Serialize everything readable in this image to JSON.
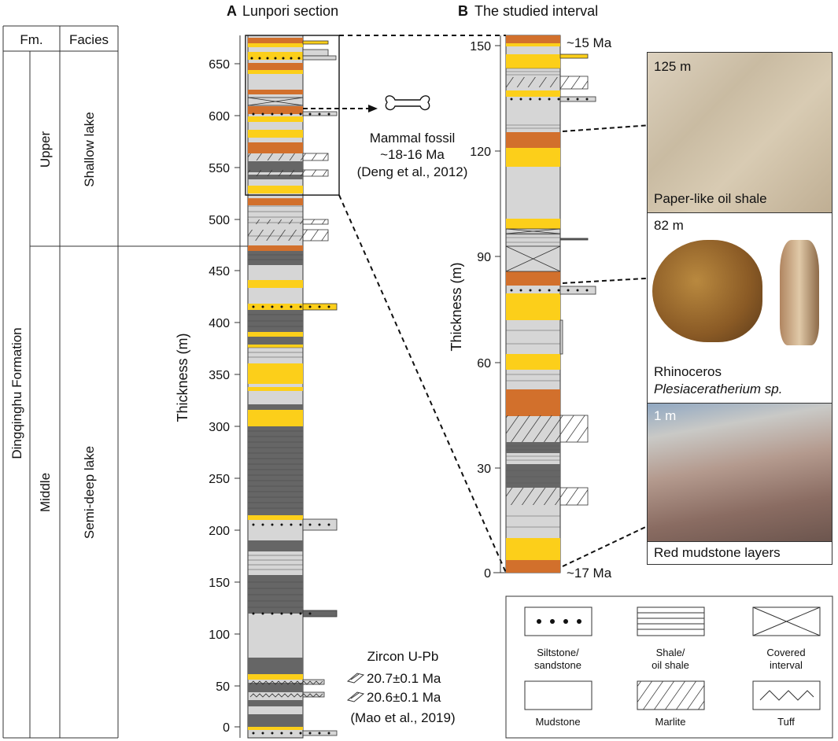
{
  "headings": {
    "a_letter": "A",
    "a_title": "Lunpori section",
    "b_letter": "B",
    "b_title": "The studied interval"
  },
  "strat_table": {
    "col_fm": "Fm.",
    "col_facies": "Facies",
    "formation": "Dingqinghu Formation",
    "member_upper": "Upper",
    "member_middle": "Middle",
    "facies_upper": "Shallow lake",
    "facies_middle": "Semi-deep lake"
  },
  "section_a": {
    "axis_label": "Thickness (m)",
    "ticks": [
      "0",
      "50",
      "100",
      "150",
      "200",
      "250",
      "300",
      "350",
      "400",
      "450",
      "500",
      "550",
      "600",
      "650"
    ],
    "fossil_label": [
      "Mammal fossil",
      "~18-16 Ma",
      "(Deng et al., 2012)"
    ],
    "zircon_title": "Zircon U-Pb",
    "zircon_age_1": "20.7±0.1 Ma",
    "zircon_age_2": "20.6±0.1 Ma",
    "zircon_ref": "(Mao et al., 2019)"
  },
  "section_b": {
    "axis_label": "Thickness (m)",
    "ticks": [
      "0",
      "30",
      "60",
      "90",
      "120",
      "150"
    ],
    "age_top": "~15 Ma",
    "age_bottom": "~17 Ma"
  },
  "photos": [
    {
      "depth": "125 m",
      "caption": "Paper-like oil shale"
    },
    {
      "depth": "82 m",
      "caption_line1": "Rhinoceros",
      "caption_line2": "Plesiaceratherium sp."
    },
    {
      "depth": "1 m",
      "caption": "Red mudstone layers"
    }
  ],
  "legend": {
    "siltstone": [
      "Siltstone/",
      "sandstone"
    ],
    "shale": [
      "Shale/",
      "oil shale"
    ],
    "covered": [
      "Covered",
      "interval"
    ],
    "mudstone": "Mudstone",
    "marlite": "Marlite",
    "tuff": "Tuff"
  },
  "colors": {
    "mudstone": "#d6d6d6",
    "yellow": "#fccf1a",
    "orange": "#d2702c",
    "dark": "#666666",
    "frame": "#222222"
  }
}
